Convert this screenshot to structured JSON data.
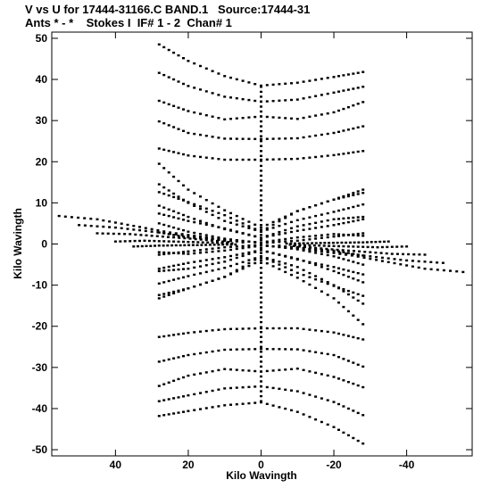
{
  "header": {
    "title": "V vs U for 17444-31166.C BAND.1   Source:17444-31",
    "subtitle": "Ants * - *    Stokes I  IF# 1 - 2  Chan# 1"
  },
  "chart_data": {
    "type": "scatter",
    "xlabel": "Kilo Wavingth",
    "ylabel": "Kilo Wavingth",
    "xlim": [
      57.5,
      -58
    ],
    "ylim": [
      -51.5,
      51.5
    ],
    "x_reversed": true,
    "x_ticks": [
      40,
      20,
      0,
      -20,
      -40
    ],
    "x_tick_labels": [
      "40",
      "20",
      "0",
      "-20",
      "-40"
    ],
    "y_ticks": [
      50,
      40,
      30,
      20,
      10,
      0,
      -10,
      -20,
      -30,
      -40,
      -50
    ],
    "y_tick_labels": [
      "50",
      "40",
      "30",
      "20",
      "10",
      "0",
      "-10",
      "-20",
      "-30",
      "-40",
      "-50"
    ],
    "grid": false,
    "marker_color": "#000000",
    "description_of_points": "UV coverage tracks; point symmetric (u,v)/(-u,-v)",
    "tracks": [
      {
        "u": [
          28,
          20,
          10,
          0,
          -10,
          -20,
          -28
        ],
        "v": [
          48.5,
          44.5,
          40.8,
          38.5,
          39.2,
          40.6,
          41.8
        ]
      },
      {
        "u": [
          28,
          20,
          10,
          0,
          -10,
          -20,
          -28
        ],
        "v": [
          41.6,
          38.4,
          35.8,
          34.6,
          35.1,
          36.8,
          38.2
        ]
      },
      {
        "u": [
          28,
          20,
          10,
          0,
          -10,
          -20,
          -28
        ],
        "v": [
          34.8,
          32.3,
          30.3,
          31.0,
          30.4,
          32.0,
          34.5
        ]
      },
      {
        "u": [
          28,
          20,
          10,
          0,
          -10,
          -20,
          -28
        ],
        "v": [
          29.8,
          27.0,
          25.6,
          25.5,
          25.7,
          27.0,
          28.6
        ]
      },
      {
        "u": [
          28,
          20,
          10,
          0,
          -10,
          -20,
          -28
        ],
        "v": [
          23.2,
          21.5,
          20.5,
          20.5,
          20.7,
          21.6,
          22.6
        ]
      },
      {
        "u": [
          28,
          20,
          10,
          0,
          -10,
          -20,
          -28
        ],
        "v": [
          19.5,
          13.2,
          8.2,
          4.0,
          8.0,
          10.8,
          13.2
        ]
      },
      {
        "u": [
          28,
          20,
          10,
          0,
          -10,
          -20,
          -28
        ],
        "v": [
          14.5,
          10.0,
          5.6,
          3.0,
          5.8,
          7.8,
          9.6
        ]
      },
      {
        "u": [
          28,
          20,
          10,
          0,
          -10,
          -20,
          -28
        ],
        "v": [
          9.3,
          6.6,
          3.6,
          1.5,
          3.2,
          4.6,
          6.0
        ]
      },
      {
        "u": [
          28,
          20,
          10,
          0,
          -10,
          -20,
          -28
        ],
        "v": [
          5.0,
          3.0,
          1.3,
          0.2,
          0.8,
          1.8,
          2.6
        ]
      },
      {
        "u": [
          28,
          20,
          10,
          0,
          -10,
          -20,
          -28
        ],
        "v": [
          -2.0,
          -2.4,
          -1.6,
          -0.4,
          -1.0,
          -1.6,
          -2.8
        ]
      },
      {
        "u": [
          28,
          20,
          10,
          0,
          -10,
          -20,
          -28
        ],
        "v": [
          -6.6,
          -6.0,
          -4.3,
          -1.5,
          -3.8,
          -5.6,
          -7.4
        ]
      },
      {
        "u": [
          28,
          20,
          10,
          0,
          -10,
          -20,
          -28
        ],
        "v": [
          -12.4,
          -10.8,
          -8.0,
          -3.0,
          -7.0,
          -10.2,
          -12.6
        ]
      },
      {
        "u": [
          55.5,
          45,
          35,
          25,
          15,
          5
        ],
        "v": [
          6.8,
          6.0,
          4.4,
          2.8,
          1.6,
          0.4
        ]
      },
      {
        "u": [
          50,
          40,
          30,
          20,
          10
        ],
        "v": [
          4.6,
          4.0,
          3.0,
          2.0,
          0.8
        ]
      },
      {
        "u": [
          45,
          36,
          27,
          18,
          9
        ],
        "v": [
          2.6,
          2.4,
          1.8,
          1.2,
          0.5
        ]
      },
      {
        "u": [
          40,
          32,
          24,
          16,
          8
        ],
        "v": [
          0.6,
          0.8,
          0.6,
          0.4,
          0.2
        ]
      },
      {
        "u": [
          35,
          28,
          21,
          14,
          7
        ],
        "v": [
          -0.6,
          -0.4,
          -0.3,
          -0.2,
          -0.1
        ]
      }
    ]
  }
}
